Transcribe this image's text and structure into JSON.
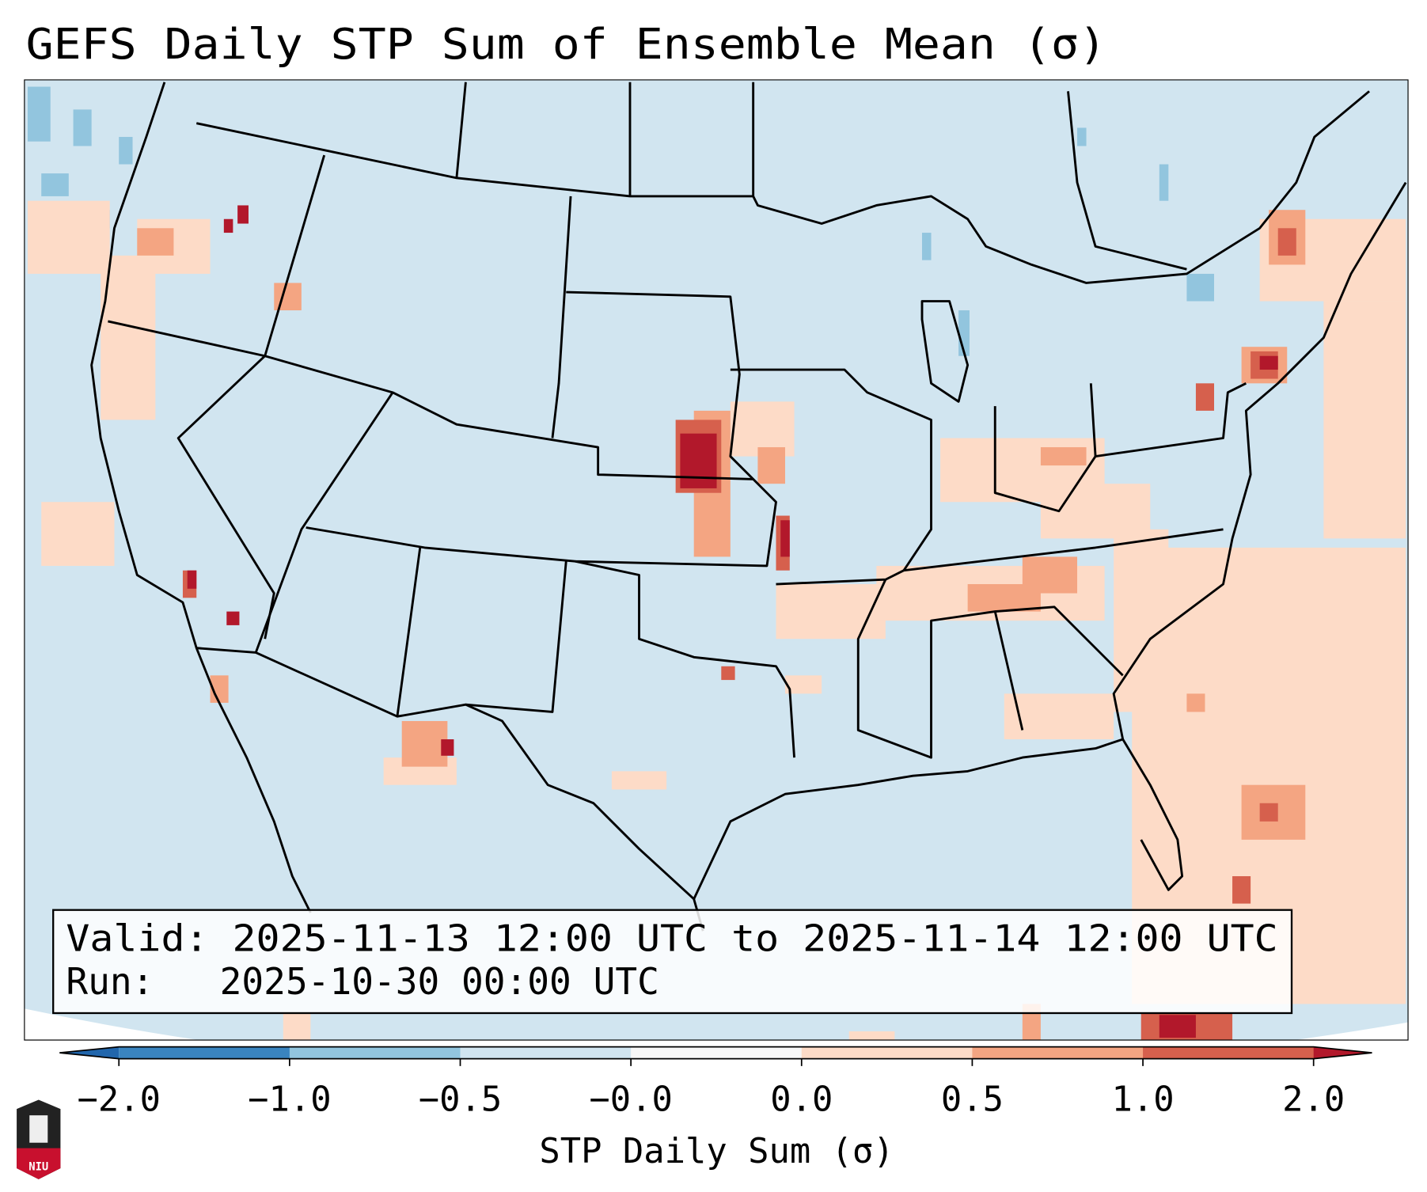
{
  "chart_data": {
    "type": "heatmap",
    "title": "GEFS Daily STP Sum of Ensemble Mean (σ)",
    "colorbar": {
      "label": "STP Daily Sum (σ)",
      "tick_labels": [
        "−2.0",
        "−1.0",
        "−0.5",
        "−0.0",
        "0.0",
        "0.5",
        "1.0",
        "2.0"
      ],
      "bounds": [
        -2.0,
        -1.0,
        -0.5,
        -0.0,
        0.0,
        0.5,
        1.0,
        2.0
      ],
      "colors": [
        "#3a84bf",
        "#92c5de",
        "#d1e5f0",
        "#f7f7f7",
        "#fddbc7",
        "#f4a582",
        "#d6604d"
      ],
      "extend_low_color": "#2166ac",
      "extend_high_color": "#b2182b"
    },
    "info": {
      "valid": "Valid: 2025-11-13 12:00 UTC to 2025-11-14 12:00 UTC",
      "run": "Run:   2025-10-30 00:00 UTC"
    },
    "logo_text": "NIU",
    "map_background": "#d1e5f0"
  }
}
